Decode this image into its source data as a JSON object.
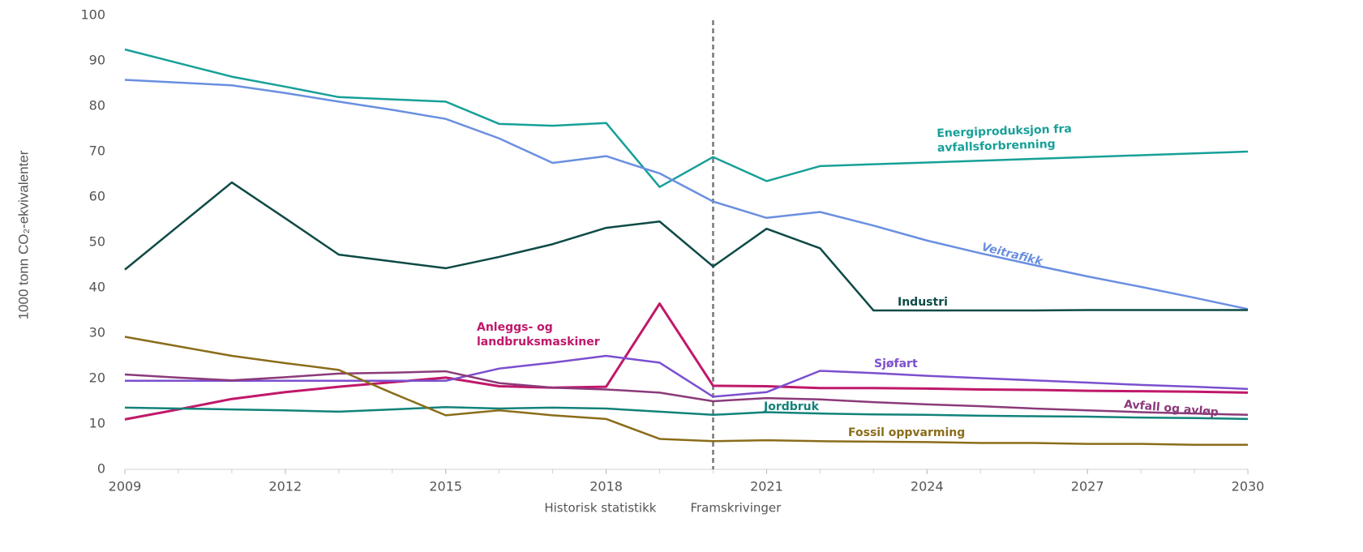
{
  "chart_data": {
    "type": "line",
    "y_label": "1000 tonn CO₂-ekvivalenter",
    "x": [
      2009,
      2010,
      2011,
      2012,
      2013,
      2014,
      2015,
      2016,
      2017,
      2018,
      2019,
      2020,
      2021,
      2022,
      2023,
      2024,
      2025,
      2026,
      2027,
      2028,
      2029,
      2030
    ],
    "xlim": [
      2009,
      2030
    ],
    "xticks": [
      2009,
      2012,
      2015,
      2018,
      2021,
      2024,
      2027,
      2030
    ],
    "ylim": [
      0,
      100
    ],
    "yticks": [
      0,
      10,
      20,
      30,
      40,
      50,
      60,
      70,
      80,
      90,
      100
    ],
    "grid": false,
    "divider_x": 2020,
    "region_labels": [
      "Historisk statistikk",
      "Framskrivinger"
    ],
    "series": [
      {
        "name": "Energiproduksjon fra avfallsforbrenning",
        "color": "#17a098",
        "values": [
          92.5,
          89.5,
          86.5,
          84.3,
          82,
          81.5,
          81,
          76.1,
          75.7,
          76.3,
          62.2,
          68.8,
          63.5,
          66.8,
          67.2,
          67.6,
          68.0,
          68.4,
          68.8,
          69.2,
          69.6,
          70
        ]
      },
      {
        "name": "Veitrafikk",
        "color": "#6a8fe0",
        "values": [
          85.8,
          85.2,
          84.6,
          82.9,
          81,
          79.2,
          77.2,
          72.9,
          67.5,
          69,
          65.2,
          59,
          55.4,
          56.7,
          53.7,
          50.4,
          47.6,
          45,
          42.5,
          40.2,
          37.8,
          35.3
        ]
      },
      {
        "name": "Industri",
        "color": "#0d4a45",
        "values": [
          44,
          53.6,
          63.2,
          55.3,
          47.3,
          45.8,
          44.3,
          46.8,
          49.6,
          53.2,
          54.6,
          44.7,
          53,
          48.7,
          35,
          35,
          35,
          35,
          35.1,
          35.1,
          35.1,
          35.1
        ]
      },
      {
        "name": "Anleggs- og landbruksmaskiner",
        "color": "#c0186a",
        "values": [
          11,
          13.2,
          15.5,
          17,
          18.2,
          19.2,
          20.2,
          18.3,
          18,
          18.2,
          36.5,
          18.4,
          18.3,
          17.9,
          17.9,
          17.8,
          17.6,
          17.5,
          17.3,
          17.2,
          17.1,
          16.9
        ]
      },
      {
        "name": "Sjøfart",
        "color": "#7b4fcf",
        "values": [
          19.5,
          19.5,
          19.5,
          19.5,
          19.5,
          19.5,
          19.5,
          22.2,
          23.5,
          25,
          23.5,
          16,
          17,
          21.7,
          21.2,
          20.6,
          20.1,
          19.6,
          19.1,
          18.6,
          18.2,
          17.7
        ]
      },
      {
        "name": "Avfall og avløp",
        "color": "#8b3a7a",
        "values": [
          20.9,
          20.2,
          19.6,
          20.3,
          21.1,
          21.3,
          21.6,
          19,
          18,
          17.6,
          16.9,
          15,
          15.7,
          15.4,
          14.8,
          14.3,
          13.9,
          13.4,
          13,
          12.6,
          12.3,
          12
        ]
      },
      {
        "name": "Jordbruk",
        "color": "#12827a",
        "values": [
          13.6,
          13.4,
          13.2,
          13,
          12.7,
          13.2,
          13.7,
          13.4,
          13.6,
          13.4,
          12.7,
          12,
          12.6,
          12.3,
          12.1,
          12,
          11.8,
          11.7,
          11.6,
          11.4,
          11.3,
          11.1
        ]
      },
      {
        "name": "Fossil oppvarming",
        "color": "#8a6d1a",
        "values": [
          29.2,
          27.1,
          25,
          23.4,
          21.9,
          16.8,
          11.9,
          13,
          11.9,
          11.1,
          6.7,
          6.2,
          6.4,
          6.2,
          6.1,
          6,
          5.8,
          5.8,
          5.6,
          5.6,
          5.4,
          5.4
        ]
      }
    ]
  }
}
